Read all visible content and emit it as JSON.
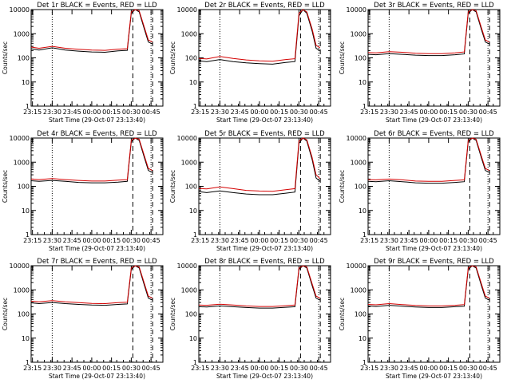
{
  "chart_data": [
    {
      "type": "line",
      "title": "Det 1r BLACK = Events, RED = LLD",
      "xlabel": "Start Time (29-Oct-07 23:13:40)",
      "ylabel": "Counts/sec",
      "yscale": "log",
      "ylim": [
        1,
        10000
      ],
      "y_ticks": [
        "1",
        "10",
        "100",
        "1000",
        "10000"
      ],
      "x_ticks": [
        "23:15",
        "23:30",
        "23:45",
        "00:00",
        "00:15",
        "00:30",
        "00:45"
      ],
      "xlim_minutes": [
        0,
        100
      ],
      "vlines_dotted": [
        "23:30",
        "00:45"
      ],
      "vlines_dashed": [
        "00:30",
        "00:45"
      ],
      "series": [
        {
          "color": "#000000",
          "x": [
            "23:14",
            "23:20",
            "23:30",
            "23:40",
            "23:50",
            "00:00",
            "00:10",
            "00:20",
            "00:27",
            "00:30",
            "00:33",
            "00:36",
            "00:40",
            "00:43",
            "00:46"
          ],
          "values": [
            240,
            210,
            260,
            210,
            190,
            175,
            170,
            195,
            205,
            7000,
            10000,
            8000,
            1500,
            450,
            380
          ]
        },
        {
          "color": "#d40000",
          "x": [
            "23:14",
            "23:20",
            "23:30",
            "23:40",
            "23:50",
            "00:00",
            "00:10",
            "00:20",
            "00:27",
            "00:30",
            "00:33",
            "00:36",
            "00:40",
            "00:43",
            "00:46"
          ],
          "values": [
            280,
            250,
            300,
            250,
            225,
            210,
            205,
            230,
            240,
            8000,
            10000,
            9000,
            1800,
            550,
            450
          ]
        }
      ]
    },
    {
      "type": "line",
      "title": "Det 2r BLACK = Events, RED = LLD",
      "xlabel": "Start Time (29-Oct-07 23:13:40)",
      "ylabel": "Counts/sec",
      "yscale": "log",
      "ylim": [
        1,
        10000
      ],
      "y_ticks": [
        "1",
        "10",
        "100",
        "1000",
        "10000"
      ],
      "x_ticks": [
        "23:15",
        "23:30",
        "23:45",
        "00:00",
        "00:15",
        "00:30",
        "00:45"
      ],
      "xlim_minutes": [
        0,
        100
      ],
      "vlines_dotted": [
        "23:30",
        "00:45"
      ],
      "vlines_dashed": [
        "00:30",
        "00:45"
      ],
      "series": [
        {
          "color": "#000000",
          "x": [
            "23:14",
            "23:20",
            "23:30",
            "23:40",
            "23:50",
            "00:00",
            "00:10",
            "00:20",
            "00:27",
            "00:30",
            "00:33",
            "00:36",
            "00:40",
            "00:43",
            "00:46"
          ],
          "values": [
            75,
            70,
            85,
            70,
            62,
            58,
            55,
            65,
            70,
            5500,
            10000,
            7000,
            1300,
            250,
            200
          ]
        },
        {
          "color": "#d40000",
          "x": [
            "23:14",
            "23:20",
            "23:30",
            "23:40",
            "23:50",
            "00:00",
            "00:10",
            "00:20",
            "00:27",
            "00:30",
            "00:33",
            "00:36",
            "00:40",
            "00:43",
            "00:46"
          ],
          "values": [
            95,
            90,
            115,
            95,
            82,
            75,
            72,
            85,
            92,
            7000,
            10000,
            8000,
            1600,
            330,
            260
          ]
        }
      ]
    },
    {
      "type": "line",
      "title": "Det 3r BLACK = Events, RED = LLD",
      "xlabel": "Start Time (29-Oct-07 23:13:40)",
      "ylabel": "Counts/sec",
      "yscale": "log",
      "ylim": [
        1,
        10000
      ],
      "y_ticks": [
        "1",
        "10",
        "100",
        "1000",
        "10000"
      ],
      "x_ticks": [
        "23:15",
        "23:30",
        "23:45",
        "00:00",
        "00:15",
        "00:30",
        "00:45"
      ],
      "xlim_minutes": [
        0,
        100
      ],
      "vlines_dotted": [
        "23:30",
        "00:45"
      ],
      "vlines_dashed": [
        "00:30",
        "00:45"
      ],
      "series": [
        {
          "color": "#000000",
          "x": [
            "23:14",
            "23:20",
            "23:30",
            "23:40",
            "23:50",
            "00:00",
            "00:10",
            "00:20",
            "00:27",
            "00:30",
            "00:33",
            "00:36",
            "00:40",
            "00:43",
            "00:46"
          ],
          "values": [
            140,
            135,
            150,
            140,
            130,
            125,
            125,
            135,
            145,
            7000,
            10000,
            8000,
            1500,
            450,
            380
          ]
        },
        {
          "color": "#d40000",
          "x": [
            "23:14",
            "23:20",
            "23:30",
            "23:40",
            "23:50",
            "00:00",
            "00:10",
            "00:20",
            "00:27",
            "00:30",
            "00:33",
            "00:36",
            "00:40",
            "00:43",
            "00:46"
          ],
          "values": [
            165,
            160,
            180,
            170,
            155,
            150,
            150,
            160,
            175,
            8000,
            10000,
            9000,
            1800,
            550,
            450
          ]
        }
      ]
    },
    {
      "type": "line",
      "title": "Det 4r BLACK = Events, RED = LLD",
      "xlabel": "Start Time (29-Oct-07 23:13:40)",
      "ylabel": "Counts/sec",
      "yscale": "log",
      "ylim": [
        1,
        10000
      ],
      "y_ticks": [
        "1",
        "10",
        "100",
        "1000",
        "10000"
      ],
      "x_ticks": [
        "23:15",
        "23:30",
        "23:45",
        "00:00",
        "00:15",
        "00:30",
        "00:45"
      ],
      "xlim_minutes": [
        0,
        100
      ],
      "vlines_dotted": [
        "23:30",
        "00:45"
      ],
      "vlines_dashed": [
        "00:30",
        "00:45"
      ],
      "series": [
        {
          "color": "#000000",
          "x": [
            "23:14",
            "23:20",
            "23:30",
            "23:40",
            "23:50",
            "00:00",
            "00:10",
            "00:20",
            "00:27",
            "00:30",
            "00:33",
            "00:36",
            "00:40",
            "00:43",
            "00:46"
          ],
          "values": [
            170,
            160,
            175,
            160,
            145,
            140,
            140,
            150,
            160,
            7000,
            10000,
            8000,
            1500,
            450,
            380
          ]
        },
        {
          "color": "#d40000",
          "x": [
            "23:14",
            "23:20",
            "23:30",
            "23:40",
            "23:50",
            "00:00",
            "00:10",
            "00:20",
            "00:27",
            "00:30",
            "00:33",
            "00:36",
            "00:40",
            "00:43",
            "00:46"
          ],
          "values": [
            200,
            190,
            210,
            190,
            175,
            165,
            165,
            180,
            190,
            8000,
            10000,
            9000,
            1800,
            550,
            450
          ]
        }
      ]
    },
    {
      "type": "line",
      "title": "Det 5r BLACK = Events, RED = LLD",
      "xlabel": "Start Time (29-Oct-07 23:13:40)",
      "ylabel": "Counts/sec",
      "yscale": "log",
      "ylim": [
        1,
        10000
      ],
      "y_ticks": [
        "1",
        "10",
        "100",
        "1000",
        "10000"
      ],
      "x_ticks": [
        "23:15",
        "23:30",
        "23:45",
        "00:00",
        "00:15",
        "00:30",
        "00:45"
      ],
      "xlim_minutes": [
        0,
        100
      ],
      "vlines_dotted": [
        "23:30",
        "00:45"
      ],
      "vlines_dashed": [
        "00:30",
        "00:45"
      ],
      "series": [
        {
          "color": "#000000",
          "x": [
            "23:14",
            "23:20",
            "23:30",
            "23:40",
            "23:50",
            "00:00",
            "00:10",
            "00:20",
            "00:27",
            "00:30",
            "00:33",
            "00:36",
            "00:40",
            "00:43",
            "00:46"
          ],
          "values": [
            60,
            55,
            65,
            55,
            48,
            45,
            45,
            52,
            58,
            6000,
            10000,
            7500,
            1300,
            220,
            160
          ]
        },
        {
          "color": "#d40000",
          "x": [
            "23:14",
            "23:20",
            "23:30",
            "23:40",
            "23:50",
            "00:00",
            "00:10",
            "00:20",
            "00:27",
            "00:30",
            "00:33",
            "00:36",
            "00:40",
            "00:43",
            "00:46"
          ],
          "values": [
            82,
            78,
            95,
            80,
            68,
            64,
            62,
            72,
            80,
            7500,
            10000,
            8500,
            1600,
            300,
            210
          ]
        }
      ]
    },
    {
      "type": "line",
      "title": "Det 6r BLACK = Events, RED = LLD",
      "xlabel": "Start Time (29-Oct-07 23:13:40)",
      "ylabel": "Counts/sec",
      "yscale": "log",
      "ylim": [
        1,
        10000
      ],
      "y_ticks": [
        "1",
        "10",
        "100",
        "1000",
        "10000"
      ],
      "x_ticks": [
        "23:15",
        "23:30",
        "23:45",
        "00:00",
        "00:15",
        "00:30",
        "00:45"
      ],
      "xlim_minutes": [
        0,
        100
      ],
      "vlines_dotted": [
        "23:30",
        "00:45"
      ],
      "vlines_dashed": [
        "00:30",
        "00:45"
      ],
      "series": [
        {
          "color": "#000000",
          "x": [
            "23:14",
            "23:20",
            "23:30",
            "23:40",
            "23:50",
            "00:00",
            "00:10",
            "00:20",
            "00:27",
            "00:30",
            "00:33",
            "00:36",
            "00:40",
            "00:43",
            "00:46"
          ],
          "values": [
            160,
            155,
            170,
            155,
            140,
            135,
            135,
            145,
            155,
            7000,
            10000,
            8000,
            1500,
            450,
            380
          ]
        },
        {
          "color": "#d40000",
          "x": [
            "23:14",
            "23:20",
            "23:30",
            "23:40",
            "23:50",
            "00:00",
            "00:10",
            "00:20",
            "00:27",
            "00:30",
            "00:33",
            "00:36",
            "00:40",
            "00:43",
            "00:46"
          ],
          "values": [
            190,
            185,
            200,
            185,
            165,
            160,
            160,
            175,
            185,
            8000,
            10000,
            9000,
            1800,
            550,
            450
          ]
        }
      ]
    },
    {
      "type": "line",
      "title": "Det 7r BLACK = Events, RED = LLD",
      "xlabel": "Start Time (29-Oct-07 23:13:40)",
      "ylabel": "Counts/sec",
      "yscale": "log",
      "ylim": [
        1,
        10000
      ],
      "y_ticks": [
        "1",
        "10",
        "100",
        "1000",
        "10000"
      ],
      "x_ticks": [
        "23:15",
        "23:30",
        "23:45",
        "00:00",
        "00:15",
        "00:30",
        "00:45"
      ],
      "xlim_minutes": [
        0,
        100
      ],
      "vlines_dotted": [
        "23:30",
        "00:45"
      ],
      "vlines_dashed": [
        "00:30",
        "00:45"
      ],
      "series": [
        {
          "color": "#000000",
          "x": [
            "23:14",
            "23:20",
            "23:30",
            "23:40",
            "23:50",
            "00:00",
            "00:10",
            "00:20",
            "00:27",
            "00:30",
            "00:33",
            "00:36",
            "00:40",
            "00:43",
            "00:46"
          ],
          "values": [
            290,
            270,
            300,
            270,
            250,
            235,
            230,
            250,
            260,
            7000,
            10000,
            8000,
            1500,
            450,
            380
          ]
        },
        {
          "color": "#d40000",
          "x": [
            "23:14",
            "23:20",
            "23:30",
            "23:40",
            "23:50",
            "00:00",
            "00:10",
            "00:20",
            "00:27",
            "00:30",
            "00:33",
            "00:36",
            "00:40",
            "00:43",
            "00:46"
          ],
          "values": [
            340,
            320,
            360,
            320,
            295,
            275,
            270,
            295,
            305,
            8000,
            10000,
            9000,
            1800,
            550,
            450
          ]
        }
      ]
    },
    {
      "type": "line",
      "title": "Det 8r BLACK = Events, RED = LLD",
      "xlabel": "Start Time (29-Oct-07 23:13:40)",
      "ylabel": "Counts/sec",
      "yscale": "log",
      "ylim": [
        1,
        10000
      ],
      "y_ticks": [
        "1",
        "10",
        "100",
        "1000",
        "10000"
      ],
      "x_ticks": [
        "23:15",
        "23:30",
        "23:45",
        "00:00",
        "00:15",
        "00:30",
        "00:45"
      ],
      "xlim_minutes": [
        0,
        100
      ],
      "vlines_dotted": [
        "23:30",
        "00:45"
      ],
      "vlines_dashed": [
        "00:30",
        "00:45"
      ],
      "series": [
        {
          "color": "#000000",
          "x": [
            "23:14",
            "23:20",
            "23:30",
            "23:40",
            "23:50",
            "00:00",
            "00:10",
            "00:20",
            "00:27",
            "00:30",
            "00:33",
            "00:36",
            "00:40",
            "00:43",
            "00:46"
          ],
          "values": [
            200,
            195,
            215,
            200,
            185,
            175,
            175,
            190,
            200,
            7000,
            10000,
            8000,
            1500,
            450,
            380
          ]
        },
        {
          "color": "#d40000",
          "x": [
            "23:14",
            "23:20",
            "23:30",
            "23:40",
            "23:50",
            "00:00",
            "00:10",
            "00:20",
            "00:27",
            "00:30",
            "00:33",
            "00:36",
            "00:40",
            "00:43",
            "00:46"
          ],
          "values": [
            235,
            230,
            255,
            235,
            215,
            205,
            205,
            220,
            235,
            8000,
            10000,
            9000,
            1800,
            550,
            450
          ]
        }
      ]
    },
    {
      "type": "line",
      "title": "Det 9r BLACK = Events, RED = LLD",
      "xlabel": "Start Time (29-Oct-07 23:13:40)",
      "ylabel": "Counts/sec",
      "yscale": "log",
      "ylim": [
        1,
        10000
      ],
      "y_ticks": [
        "1",
        "10",
        "100",
        "1000",
        "10000"
      ],
      "x_ticks": [
        "23:15",
        "23:30",
        "23:45",
        "00:00",
        "00:15",
        "00:30",
        "00:45"
      ],
      "xlim_minutes": [
        0,
        100
      ],
      "vlines_dotted": [
        "23:30",
        "00:45"
      ],
      "vlines_dashed": [
        "00:30",
        "00:45"
      ],
      "series": [
        {
          "color": "#000000",
          "x": [
            "23:14",
            "23:20",
            "23:30",
            "23:40",
            "23:50",
            "00:00",
            "00:10",
            "00:20",
            "00:27",
            "00:30",
            "00:33",
            "00:36",
            "00:40",
            "00:43",
            "00:46"
          ],
          "values": [
            215,
            205,
            230,
            210,
            195,
            185,
            185,
            200,
            210,
            7000,
            10000,
            8000,
            1500,
            450,
            380
          ]
        },
        {
          "color": "#d40000",
          "x": [
            "23:14",
            "23:20",
            "23:30",
            "23:40",
            "23:50",
            "00:00",
            "00:10",
            "00:20",
            "00:27",
            "00:30",
            "00:33",
            "00:36",
            "00:40",
            "00:43",
            "00:46"
          ],
          "values": [
            250,
            240,
            270,
            245,
            225,
            215,
            215,
            230,
            245,
            8000,
            10000,
            9000,
            1800,
            550,
            450
          ]
        }
      ]
    }
  ]
}
